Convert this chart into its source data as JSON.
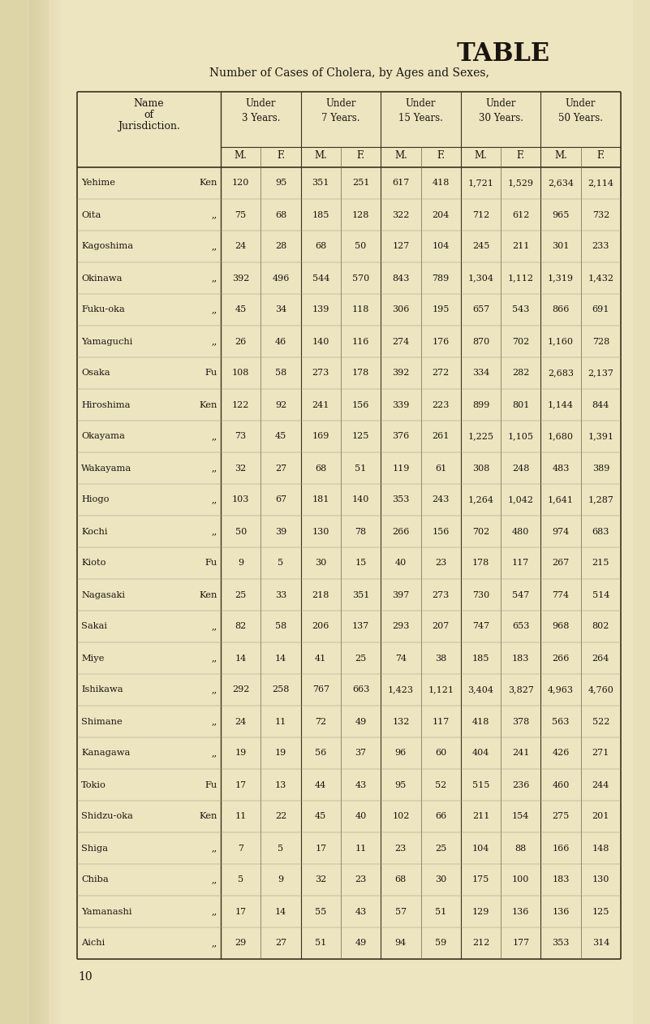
{
  "title": "TABLE",
  "subtitle": "Number of Cases of Cholera, by Ages and Sexes,",
  "page_bg": "#e8e0c0",
  "page_margin_color": "#c8b878",
  "table_bg": "#f0e8c8",
  "text_color": "#1a1410",
  "line_color": "#3a3020",
  "rows": [
    [
      "Yehime",
      "Ken",
      120,
      95,
      351,
      251,
      617,
      418,
      1721,
      1529,
      2634,
      2114
    ],
    [
      "Oita",
      ",,",
      75,
      68,
      185,
      128,
      322,
      204,
      712,
      612,
      965,
      732
    ],
    [
      "Kagoshima",
      ",,",
      24,
      28,
      68,
      50,
      127,
      104,
      245,
      211,
      301,
      233
    ],
    [
      "Okinawa",
      ",,",
      392,
      496,
      544,
      570,
      843,
      789,
      1304,
      1112,
      1319,
      1432
    ],
    [
      "Fuku-oka",
      ",,",
      45,
      34,
      139,
      118,
      306,
      195,
      657,
      543,
      866,
      691
    ],
    [
      "Yamaguchi",
      ",,",
      26,
      46,
      140,
      116,
      274,
      176,
      870,
      702,
      1160,
      728
    ],
    [
      "Osaka",
      "Fu",
      108,
      58,
      273,
      178,
      392,
      272,
      334,
      282,
      2683,
      2137
    ],
    [
      "Hiroshima",
      "Ken",
      122,
      92,
      241,
      156,
      339,
      223,
      899,
      801,
      1144,
      844
    ],
    [
      "Okayama",
      ",,",
      73,
      45,
      169,
      125,
      376,
      261,
      1225,
      1105,
      1680,
      1391
    ],
    [
      "Wakayama",
      ",,",
      32,
      27,
      68,
      51,
      119,
      61,
      308,
      248,
      483,
      389
    ],
    [
      "Hiogo",
      ",,",
      103,
      67,
      181,
      140,
      353,
      243,
      1264,
      1042,
      1641,
      1287
    ],
    [
      "Kochi",
      ",,",
      50,
      39,
      130,
      78,
      266,
      156,
      702,
      480,
      974,
      683
    ],
    [
      "Kioto",
      "Fu",
      9,
      5,
      30,
      15,
      40,
      23,
      178,
      117,
      267,
      215
    ],
    [
      "Nagasaki",
      "Ken",
      25,
      33,
      218,
      351,
      397,
      273,
      730,
      547,
      774,
      514
    ],
    [
      "Sakai",
      ",,",
      82,
      58,
      206,
      137,
      293,
      207,
      747,
      653,
      968,
      802
    ],
    [
      "Miye",
      ",,",
      14,
      14,
      41,
      25,
      74,
      38,
      185,
      183,
      266,
      264
    ],
    [
      "Ishikawa",
      ",,",
      292,
      258,
      767,
      663,
      1423,
      1121,
      3404,
      3827,
      4963,
      4760
    ],
    [
      "Shimane",
      ",,",
      24,
      11,
      72,
      49,
      132,
      117,
      418,
      378,
      563,
      522
    ],
    [
      "Kanagawa",
      ",,",
      19,
      19,
      56,
      37,
      96,
      60,
      404,
      241,
      426,
      271
    ],
    [
      "Tokio",
      "Fu",
      17,
      13,
      44,
      43,
      95,
      52,
      515,
      236,
      460,
      244
    ],
    [
      "Shidzu-oka",
      "Ken",
      11,
      22,
      45,
      40,
      102,
      66,
      211,
      154,
      275,
      201
    ],
    [
      "Shiga",
      ",,",
      7,
      5,
      17,
      11,
      23,
      25,
      104,
      88,
      166,
      148
    ],
    [
      "Chiba",
      ",,",
      5,
      9,
      32,
      23,
      68,
      30,
      175,
      100,
      183,
      130
    ],
    [
      "Yamanashi",
      ",,",
      17,
      14,
      55,
      43,
      57,
      51,
      129,
      136,
      136,
      125
    ],
    [
      "Aichi",
      ",,",
      29,
      27,
      51,
      49,
      94,
      59,
      212,
      177,
      353,
      314
    ]
  ],
  "page_number": "10"
}
